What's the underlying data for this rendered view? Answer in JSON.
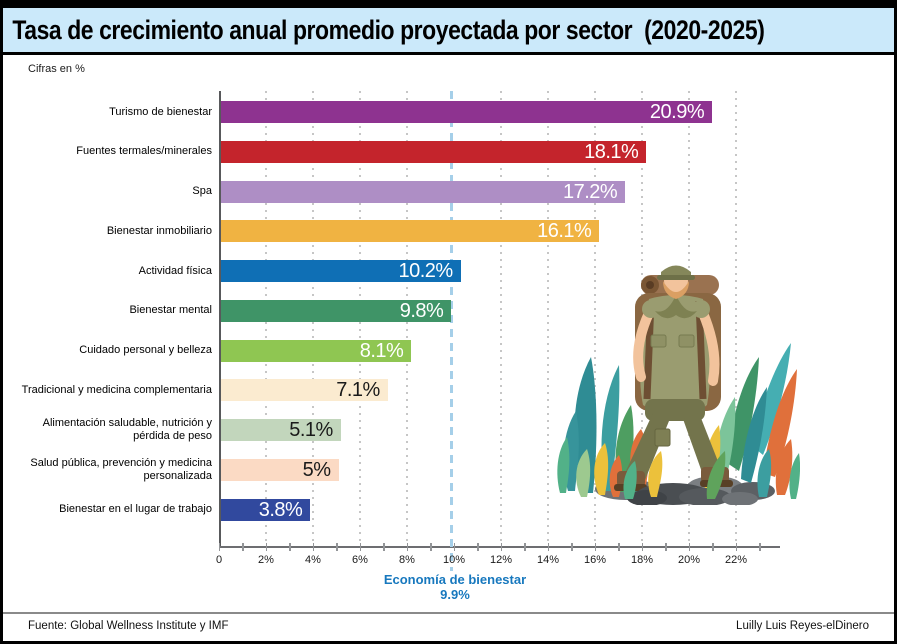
{
  "header": {
    "title": "Tasa de crecimiento anual promedio proyectada por sector  (2020-2025)"
  },
  "units_label": "Cifras en %",
  "chart_data": {
    "type": "bar",
    "orientation": "horizontal",
    "title": "Tasa de crecimiento anual promedio proyectada por sector (2020-2025)",
    "units": "Cifras en %",
    "categories": [
      "Turismo de bienestar",
      "Fuentes termales/minerales",
      "Spa",
      "Bienestar inmobiliario",
      "Actividad física",
      "Bienestar mental",
      "Cuidado personal y belleza",
      "Tradicional y medicina complementaria",
      "Alimentación saludable, nutrición y pérdida de peso",
      "Salud pública, prevención y medicina personalizada",
      "Bienestar en el lugar de trabajo"
    ],
    "values": [
      20.9,
      18.1,
      17.2,
      16.1,
      10.2,
      9.8,
      8.1,
      7.1,
      5.1,
      5,
      3.8
    ],
    "value_labels": [
      "20.9%",
      "18.1%",
      "17.2%",
      "16.1%",
      "10.2%",
      "9.8%",
      "8.1%",
      "7.1%",
      "5.1%",
      "5%",
      "3.8%"
    ],
    "bar_colors": [
      "#8E3390",
      "#C4242C",
      "#AE8EC5",
      "#F0B342",
      "#0F6FB5",
      "#3F9467",
      "#8FC652",
      "#FBEBD0",
      "#C2D6BC",
      "#FBDAC4",
      "#31499E"
    ],
    "value_text_colors": [
      "#ffffff",
      "#ffffff",
      "#ffffff",
      "#ffffff",
      "#ffffff",
      "#ffffff",
      "#ffffff",
      "#1a1a1a",
      "#1a1a1a",
      "#1a1a1a",
      "#ffffff"
    ],
    "x_ticks": [
      {
        "v": 0,
        "label": "0"
      },
      {
        "v": 2,
        "label": "2%"
      },
      {
        "v": 4,
        "label": "4%"
      },
      {
        "v": 6,
        "label": "6%"
      },
      {
        "v": 8,
        "label": "8%"
      },
      {
        "v": 10,
        "label": "10%"
      },
      {
        "v": 12,
        "label": "12%"
      },
      {
        "v": 14,
        "label": "14%"
      },
      {
        "v": 16,
        "label": "16%"
      },
      {
        "v": 18,
        "label": "18%"
      },
      {
        "v": 20,
        "label": "20%"
      },
      {
        "v": 22,
        "label": "22%"
      }
    ],
    "xlim": [
      0,
      23.9
    ],
    "gridlines_at": [
      2,
      4,
      6,
      8,
      12,
      14,
      16,
      18,
      20,
      22
    ],
    "grid": "dotted-vertical",
    "legend": "none",
    "benchmark": {
      "label": "Economía de bienestar",
      "value": 9.9,
      "value_label": "9.9%",
      "text_color": "#1778BE",
      "line_color": "#A5CFE9"
    }
  },
  "footer": {
    "source": "Fuente: Global Wellness Institute y IMF",
    "credit": "Luilly Luis Reyes-elDinero"
  },
  "illustration": {
    "name": "hiker-with-backpack-among-plants"
  },
  "colors": {
    "title_band_bg": "#CBE9FA",
    "frame": "#000000",
    "axis": "#58595B",
    "grid_dot": "#C6C6C6",
    "footer_rule": "#8A8A8A"
  }
}
